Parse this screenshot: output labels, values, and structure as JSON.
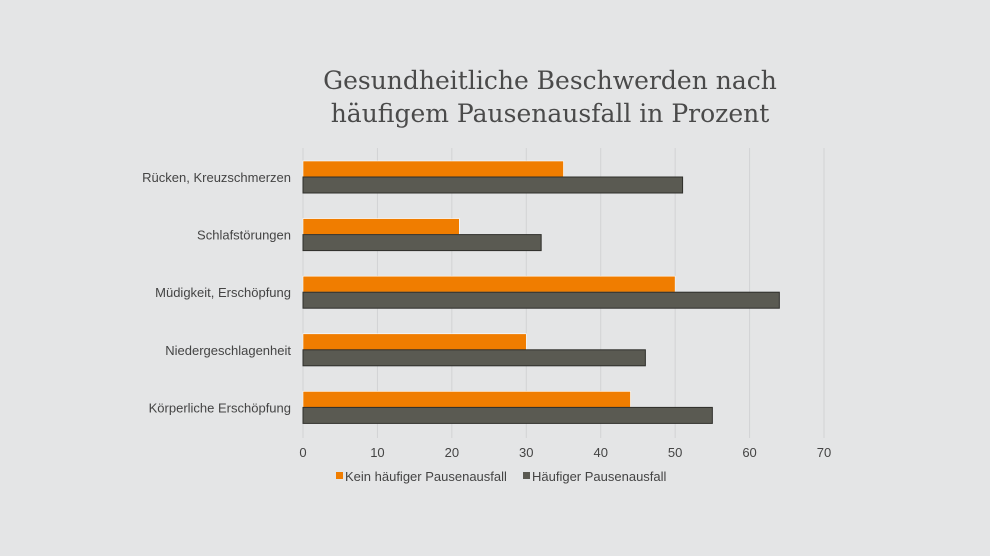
{
  "chart_data": {
    "type": "bar",
    "orientation": "horizontal",
    "title": [
      "Gesundheitliche Beschwerden nach",
      "häufigem Pausenausfall in Prozent"
    ],
    "categories": [
      "Rücken, Kreuzschmerzen",
      "Schlafstörungen",
      "Müdigkeit, Erschöpfung",
      "Niedergeschlagenheit",
      "Körperliche Erschöpfung"
    ],
    "series": [
      {
        "name": "Kein häufiger Pausenausfall",
        "color": "#f07d00",
        "values": [
          35,
          21,
          50,
          30,
          44
        ]
      },
      {
        "name": "Häufiger Pausenausfall",
        "color": "#5a5a52",
        "values": [
          51,
          32,
          64,
          46,
          55
        ]
      }
    ],
    "xlim": [
      0,
      70
    ],
    "xticks": [
      0,
      10,
      20,
      30,
      40,
      50,
      60,
      70
    ],
    "grid": true,
    "legend": "bottom"
  }
}
